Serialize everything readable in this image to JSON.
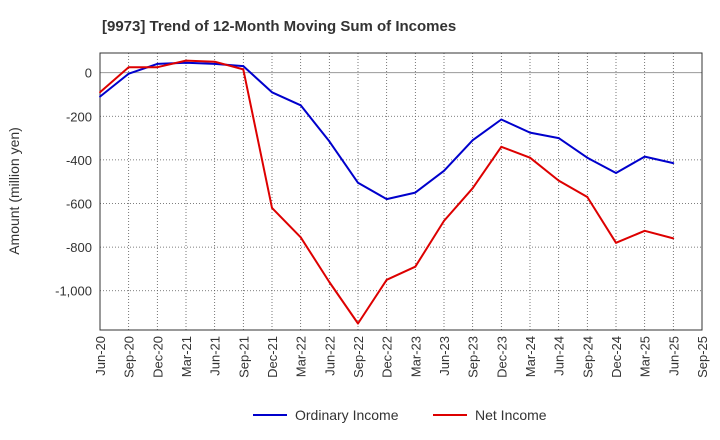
{
  "chart_data": {
    "type": "line",
    "title": "[9973]  Trend of 12-Month Moving Sum of Incomes",
    "xlabel": "",
    "ylabel": "Amount (million yen)",
    "ylim": [
      -1180,
      90
    ],
    "yticks": [
      0,
      -200,
      -400,
      -600,
      -800,
      -1000
    ],
    "ytick_labels": [
      "0",
      "-200",
      "-400",
      "-600",
      "-800",
      "-1,000"
    ],
    "x": [
      "Jun-20",
      "Sep-20",
      "Dec-20",
      "Mar-21",
      "Jun-21",
      "Sep-21",
      "Dec-21",
      "Mar-22",
      "Jun-22",
      "Sep-22",
      "Dec-22",
      "Mar-23",
      "Jun-23",
      "Sep-23",
      "Dec-23",
      "Mar-24",
      "Jun-24",
      "Sep-24",
      "Dec-24",
      "Mar-25",
      "Jun-25",
      "Sep-25"
    ],
    "grid": true,
    "legend_position": "bottom",
    "series": [
      {
        "name": "Ordinary Income",
        "color": "#0000cc",
        "values": [
          -110,
          -5,
          40,
          45,
          40,
          30,
          -90,
          -150,
          -315,
          -505,
          -580,
          -550,
          -450,
          -310,
          -215,
          -275,
          -300,
          -390,
          -460,
          -385,
          -415,
          null
        ]
      },
      {
        "name": "Net Income",
        "color": "#dd0000",
        "values": [
          -90,
          25,
          25,
          55,
          50,
          15,
          -620,
          -755,
          -960,
          -1150,
          -950,
          -890,
          -680,
          -530,
          -340,
          -390,
          -495,
          -570,
          -780,
          -725,
          -760,
          null
        ]
      }
    ]
  }
}
